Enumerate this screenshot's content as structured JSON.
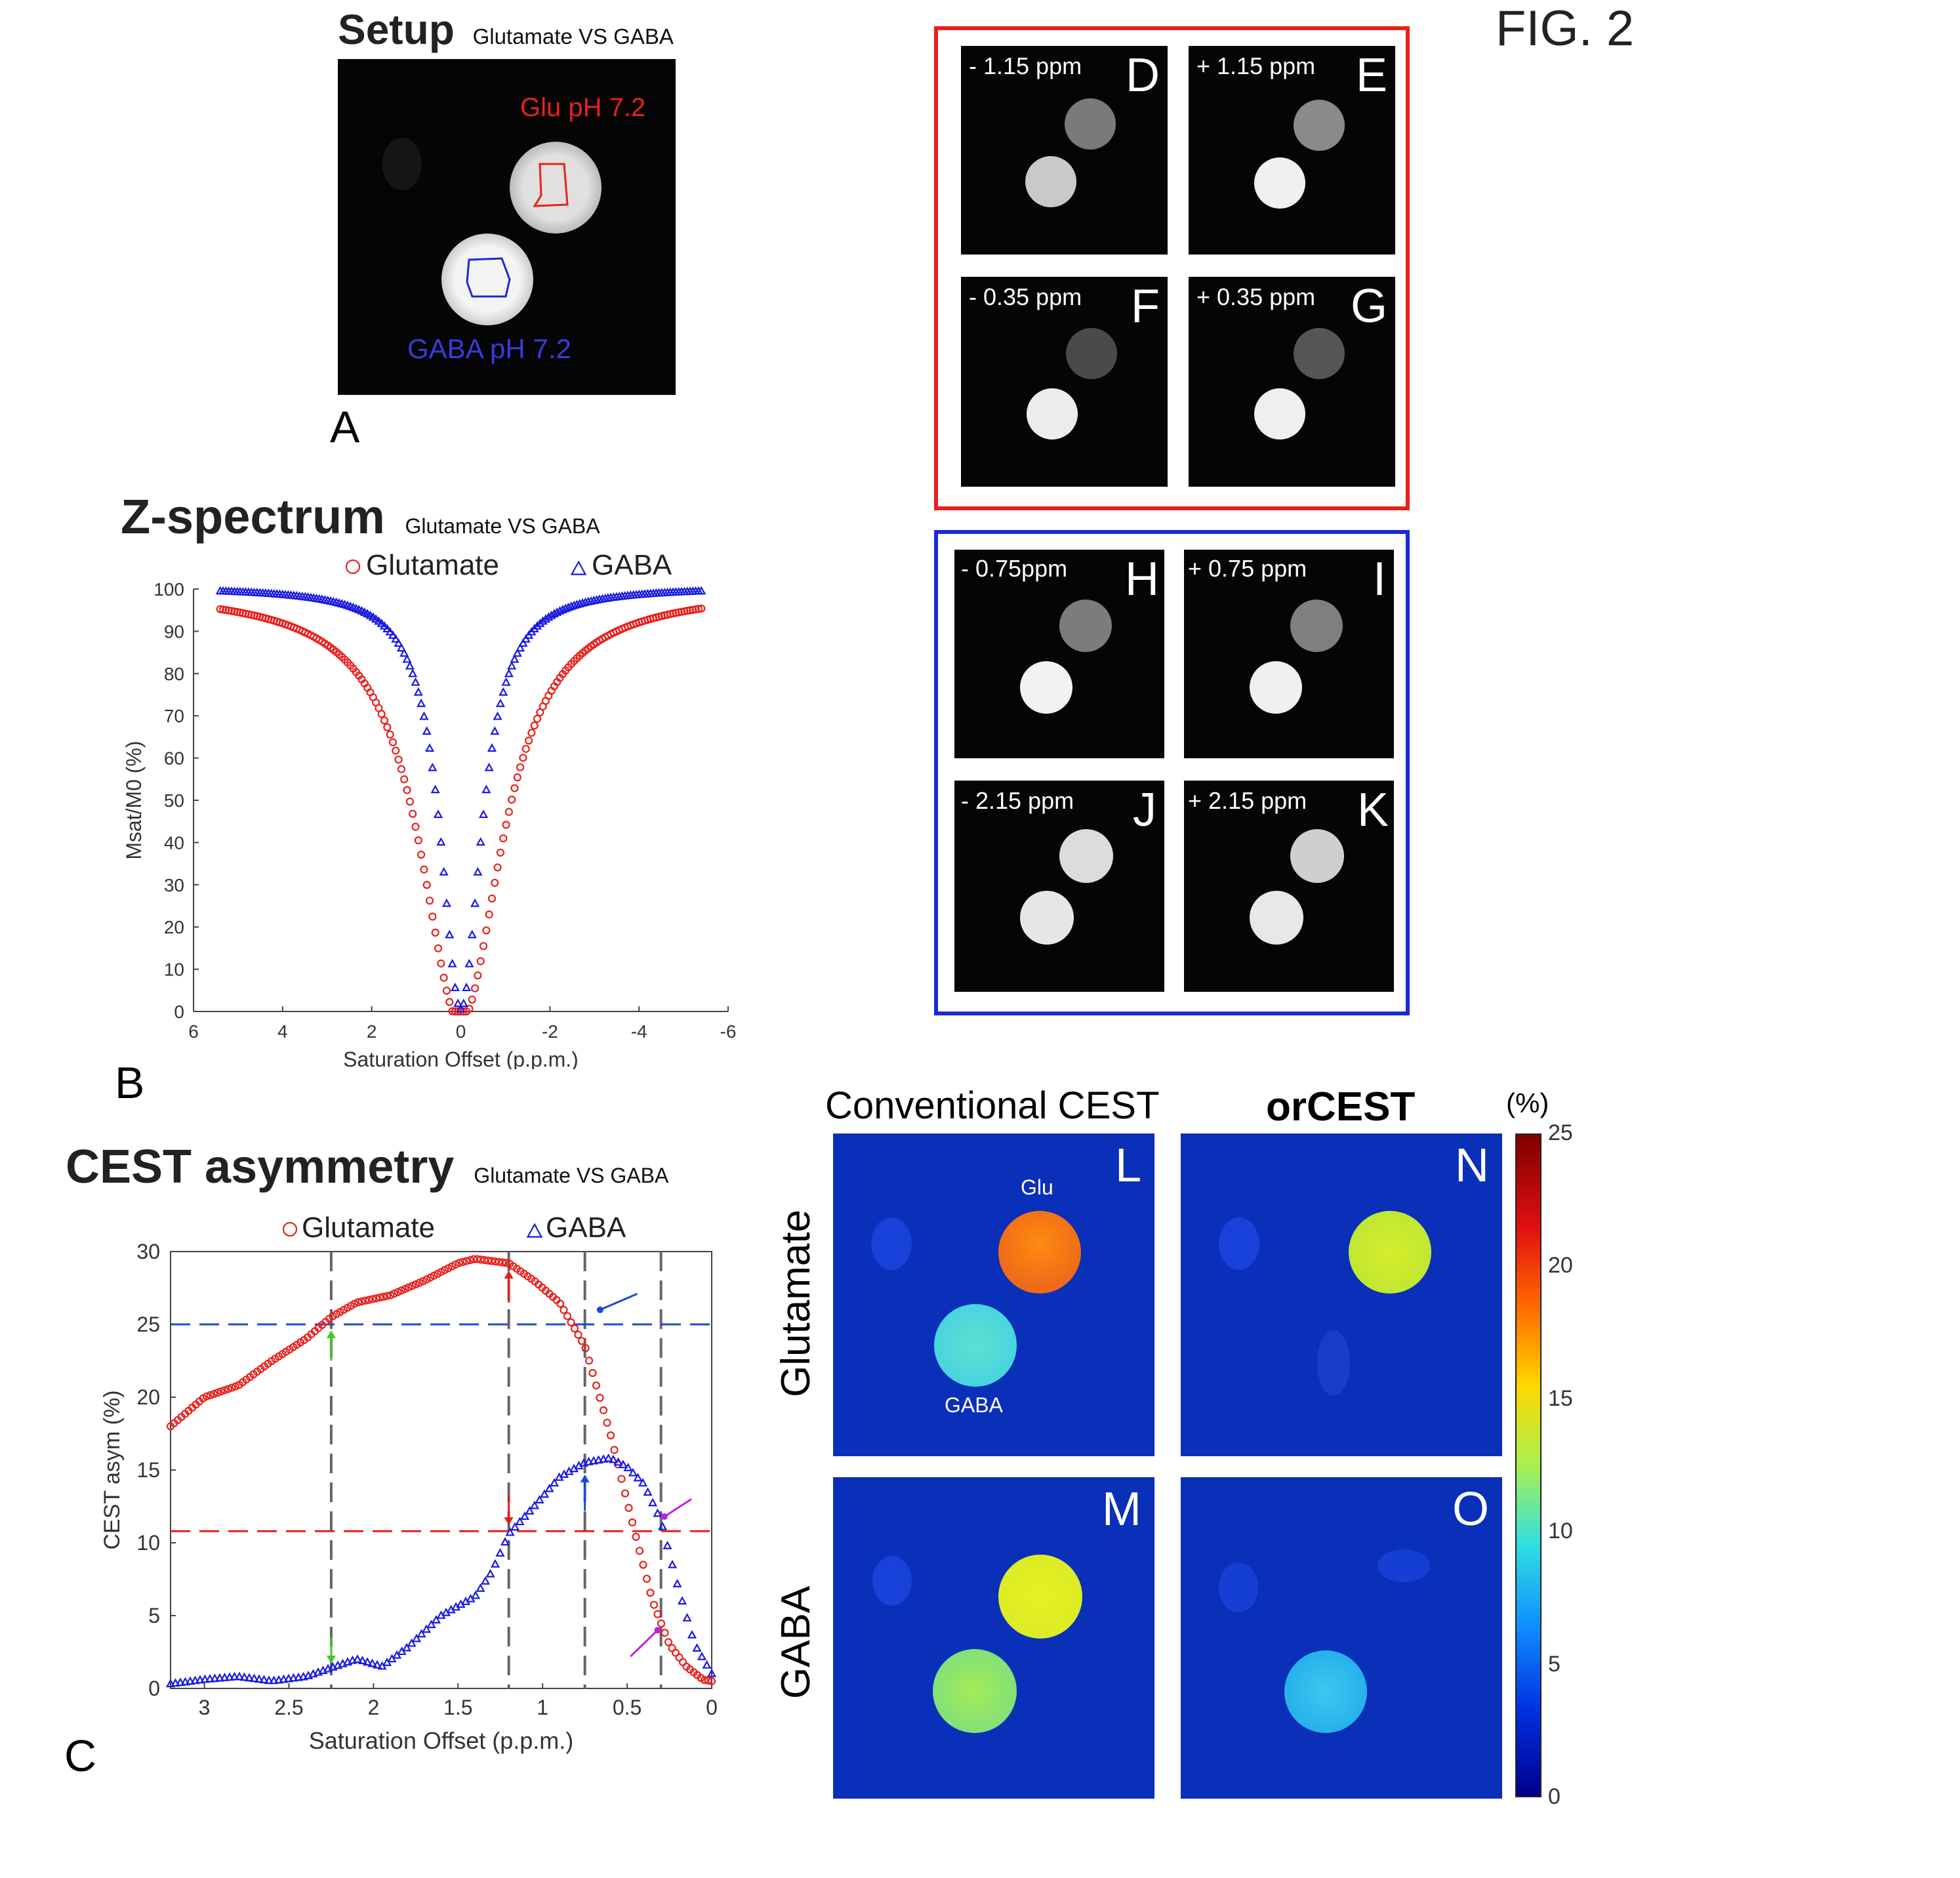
{
  "figure_label": "FIG. 2",
  "panel_a": {
    "title": "Setup",
    "subtitle": "Glutamate VS GABA",
    "glu_label": "Glu pH 7.2",
    "gaba_label": "GABA pH 7.2",
    "letter": "A"
  },
  "panel_b": {
    "title": "Z-spectrum",
    "subtitle": "Glutamate VS GABA",
    "letter": "B"
  },
  "panel_c": {
    "title": "CEST asymmetry",
    "subtitle": "Glutamate VS GABA",
    "letter": "C"
  },
  "red_group": [
    {
      "offset": "- 1.15 ppm",
      "letter": "D"
    },
    {
      "offset": "+ 1.15 ppm",
      "letter": "E"
    },
    {
      "offset": "- 0.35 ppm",
      "letter": "F"
    },
    {
      "offset": "+ 0.35 ppm",
      "letter": "G"
    }
  ],
  "blue_group": [
    {
      "offset": "- 0.75ppm",
      "letter": "H"
    },
    {
      "offset": "+ 0.75 ppm",
      "letter": "I"
    },
    {
      "offset": "- 2.15 ppm",
      "letter": "J"
    },
    {
      "offset": "+ 2.15 ppm",
      "letter": "K"
    }
  ],
  "maps": {
    "col1_header": "Conventional CEST",
    "col2_header": "orCEST",
    "row1_label": "Glutamate",
    "row2_label": "GABA",
    "glu_tube_label": "Glu",
    "gaba_tube_label": "GABA",
    "letters": [
      "L",
      "N",
      "M",
      "O"
    ],
    "colorbar_unit": "(%)",
    "colorbar_ticks": [
      "25",
      "20",
      "15",
      "10",
      "5",
      "0"
    ]
  },
  "colors": {
    "glutamate": "#e8201c",
    "gaba": "#1a1ae0",
    "red_frame": "#e8201c",
    "blue_frame": "#1a2ad8"
  },
  "chart_data": [
    {
      "id": "z-spectrum",
      "type": "scatter",
      "title": "Z-spectrum",
      "xlabel": "Saturation Offset (p.p.m.)",
      "ylabel": "Msat/M0 (%)",
      "xlim": [
        6,
        -6
      ],
      "ylim": [
        0,
        100
      ],
      "xticks": [
        "6",
        "4",
        "2",
        "0",
        "-2",
        "-4",
        "-6"
      ],
      "yticks": [
        "0",
        "10",
        "20",
        "30",
        "40",
        "50",
        "60",
        "70",
        "80",
        "90",
        "100"
      ],
      "legend": [
        "Glutamate",
        "GABA"
      ],
      "legend_position": "top",
      "series": [
        {
          "name": "Glutamate",
          "marker": "circle",
          "shape": "lorentzian",
          "x_range": [
            5.4,
            -5.4
          ],
          "depth": 100,
          "half_width": 1.1,
          "baseline": 100,
          "asym": 3
        },
        {
          "name": "GABA",
          "marker": "triangle",
          "shape": "lorentzian",
          "x_range": [
            5.4,
            -5.4
          ],
          "depth": 100,
          "half_width": 0.55,
          "baseline": 100.5,
          "asym": 0
        }
      ]
    },
    {
      "id": "cest-asymmetry",
      "type": "scatter",
      "title": "CEST asymmetry",
      "xlabel": "Saturation Offset (p.p.m.)",
      "ylabel": "CEST asym (%)",
      "xlim": [
        3.2,
        0
      ],
      "ylim": [
        0,
        30
      ],
      "xticks": [
        "3",
        "2.5",
        "2",
        "1.5",
        "1",
        "0.5",
        "0"
      ],
      "yticks": [
        "0",
        "5",
        "10",
        "15",
        "20",
        "25",
        "30"
      ],
      "legend": [
        "Glutamate",
        "GABA"
      ],
      "legend_position": "top",
      "reference_lines": {
        "horizontal": [
          25,
          10.8
        ],
        "vertical": [
          2.25,
          1.2,
          0.75,
          0.3
        ]
      },
      "series": [
        {
          "name": "Glutamate",
          "marker": "circle",
          "x": [
            3.2,
            3.0,
            2.8,
            2.6,
            2.4,
            2.25,
            2.1,
            1.9,
            1.7,
            1.5,
            1.4,
            1.2,
            1.05,
            0.9,
            0.75,
            0.6,
            0.45,
            0.35,
            0.25,
            0.15,
            0.05,
            0.0
          ],
          "y": [
            18,
            20,
            20.8,
            22.5,
            24,
            25.5,
            26.5,
            27,
            28,
            29.2,
            29.5,
            29.2,
            28,
            26.5,
            23.5,
            17.5,
            10.5,
            6,
            3,
            1.5,
            0.6,
            0.5
          ]
        },
        {
          "name": "GABA",
          "marker": "triangle",
          "x": [
            3.2,
            3.0,
            2.8,
            2.6,
            2.4,
            2.25,
            2.1,
            1.95,
            1.8,
            1.6,
            1.4,
            1.3,
            1.2,
            1.05,
            0.9,
            0.75,
            0.6,
            0.5,
            0.4,
            0.3,
            0.2,
            0.1,
            0.0
          ],
          "y": [
            0.3,
            0.6,
            0.8,
            0.5,
            0.8,
            1.4,
            2,
            1.5,
            2.8,
            5,
            6.3,
            8,
            10.6,
            12.5,
            14.5,
            15.5,
            15.8,
            15.2,
            14,
            11.5,
            7,
            3,
            1
          ]
        }
      ]
    }
  ]
}
